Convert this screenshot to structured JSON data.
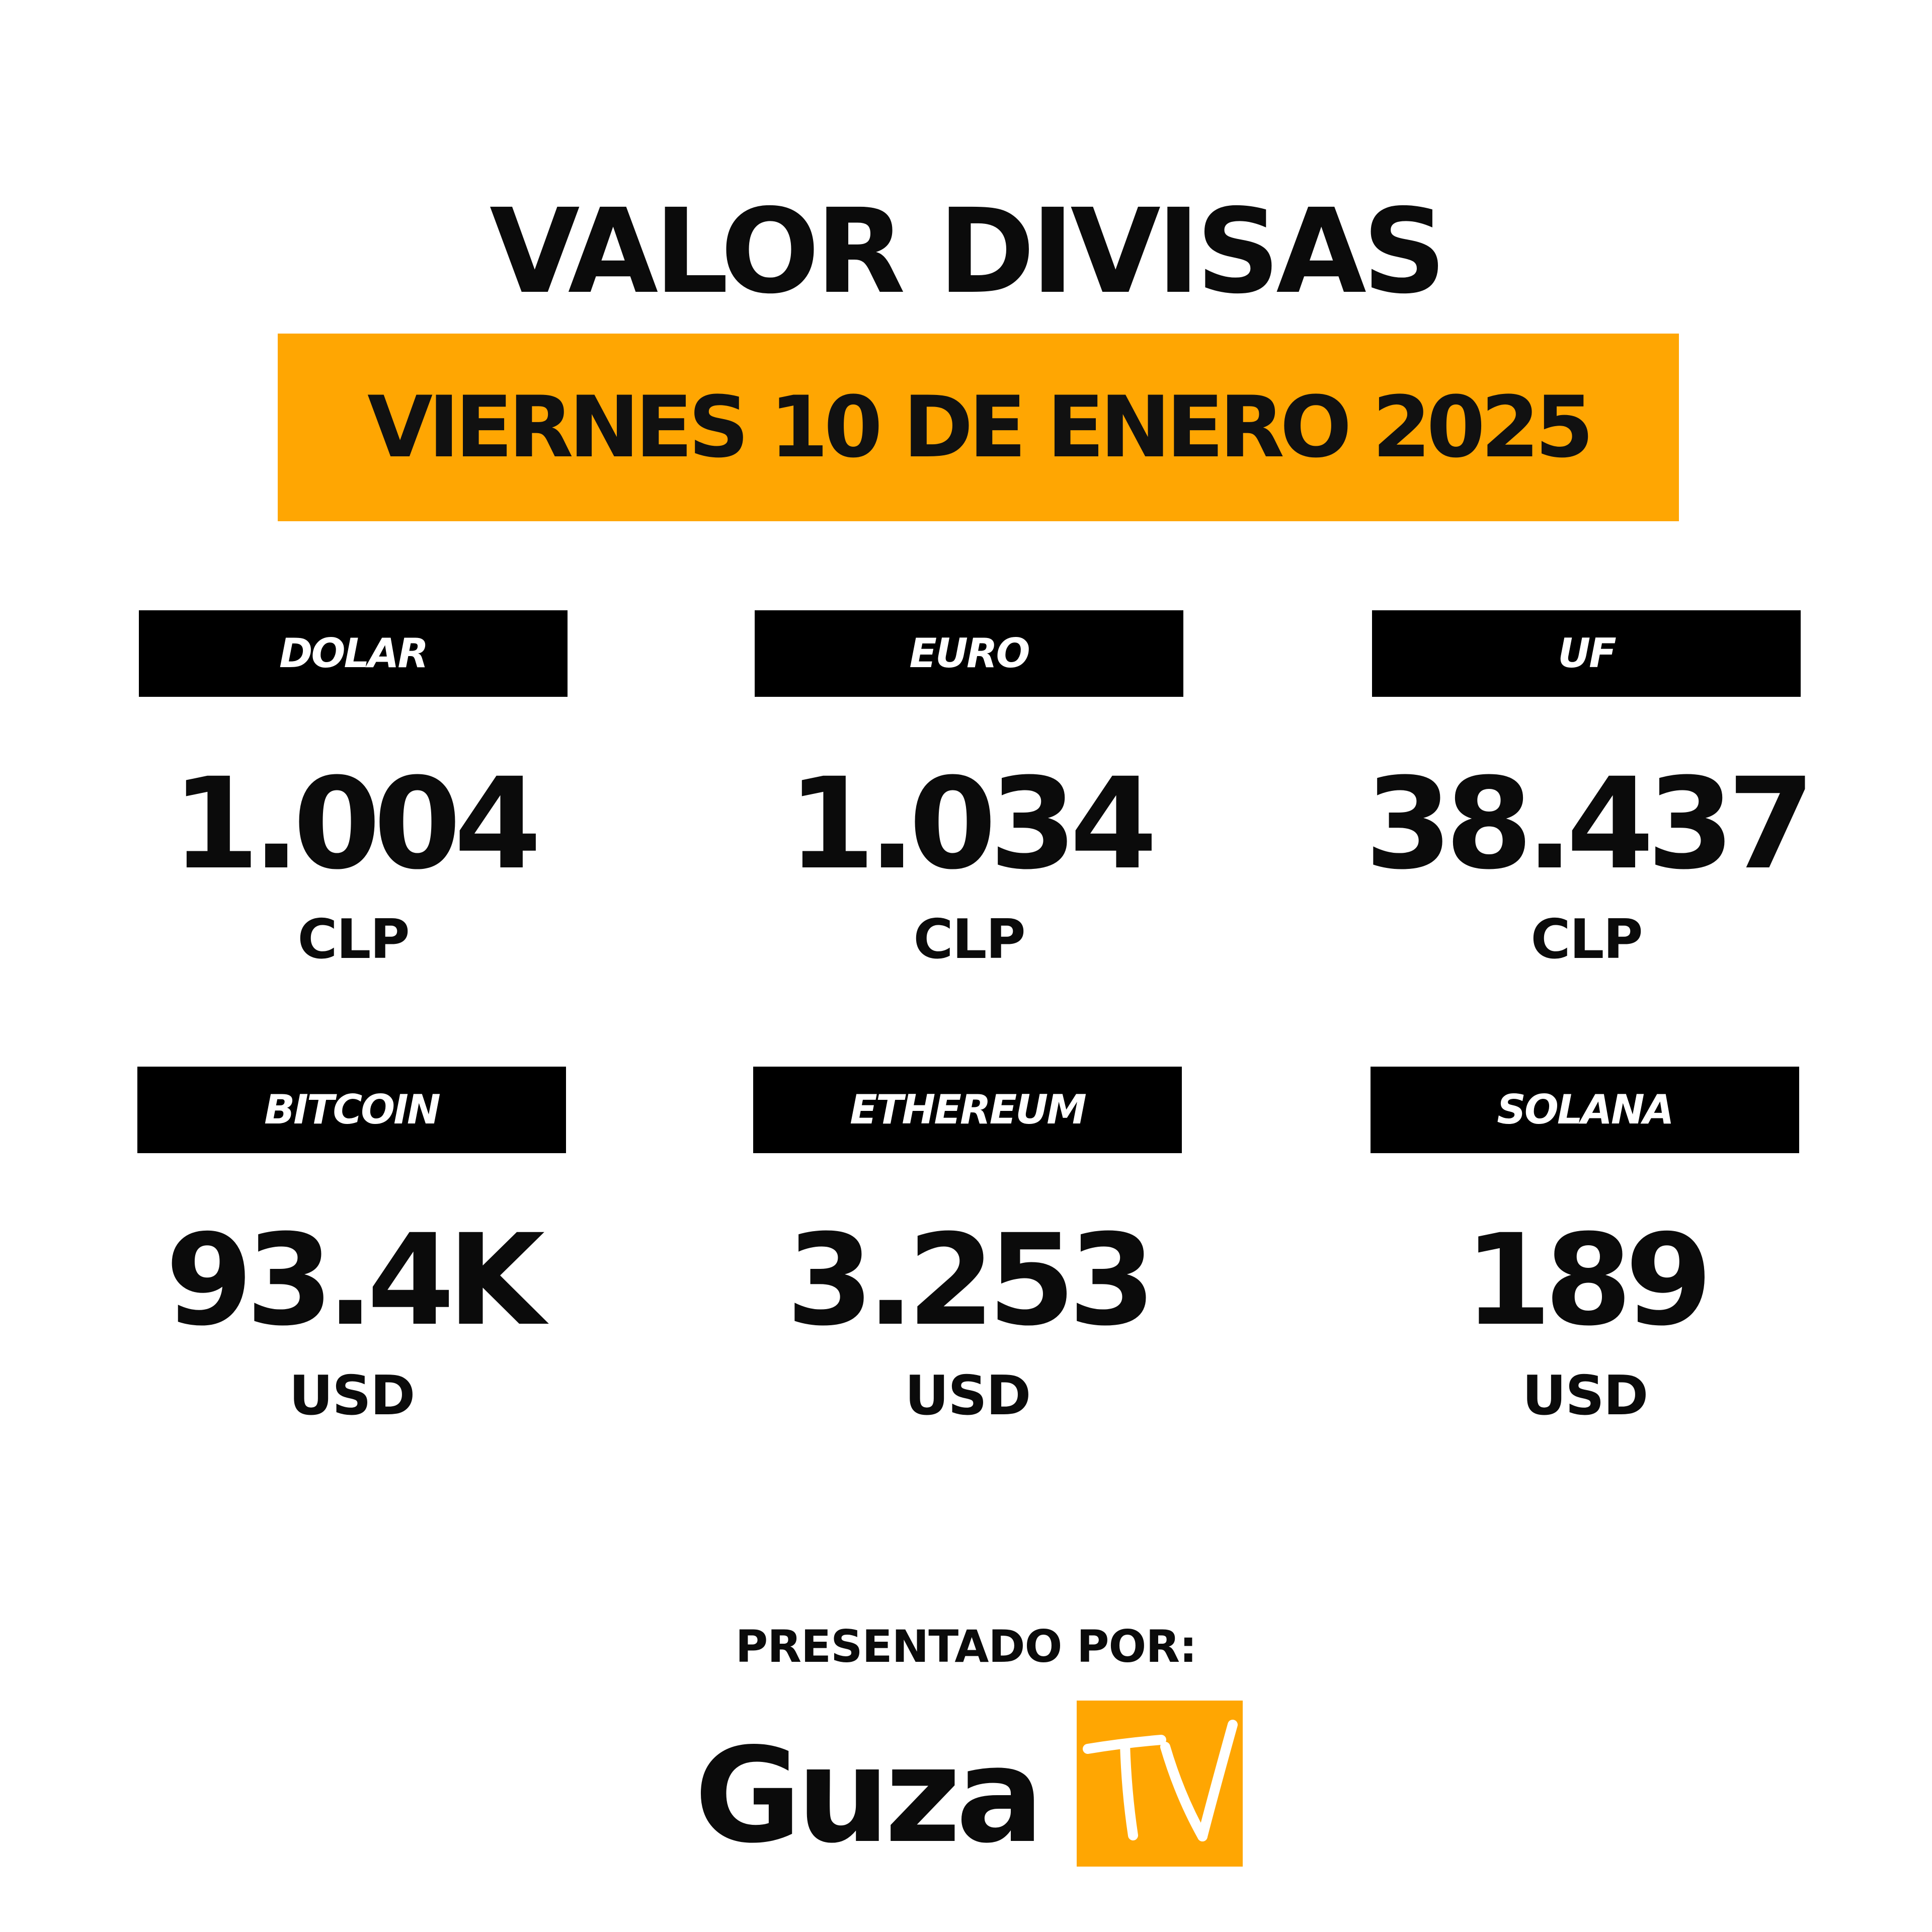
{
  "title": "VALOR DIVISAS",
  "date": "VIERNES 10 DE ENERO 2025",
  "colors": {
    "accent": "#FFA602",
    "label_bg": "#000000",
    "text": "#0b0b0b",
    "background": "#ffffff"
  },
  "rates": [
    {
      "label": "DOLAR",
      "value": "1.004",
      "unit": "CLP"
    },
    {
      "label": "EURO",
      "value": "1.034",
      "unit": "CLP"
    },
    {
      "label": "UF",
      "value": "38.437",
      "unit": "CLP"
    },
    {
      "label": "BITCOIN",
      "value": "93.4K",
      "unit": "USD"
    },
    {
      "label": "ETHEREUM",
      "value": "3.253",
      "unit": "USD"
    },
    {
      "label": "SOLANA",
      "value": "189",
      "unit": "USD"
    }
  ],
  "footer": {
    "presented_by": "PRESENTADO POR:",
    "brand_word": "Guza",
    "brand_box": "TV"
  }
}
